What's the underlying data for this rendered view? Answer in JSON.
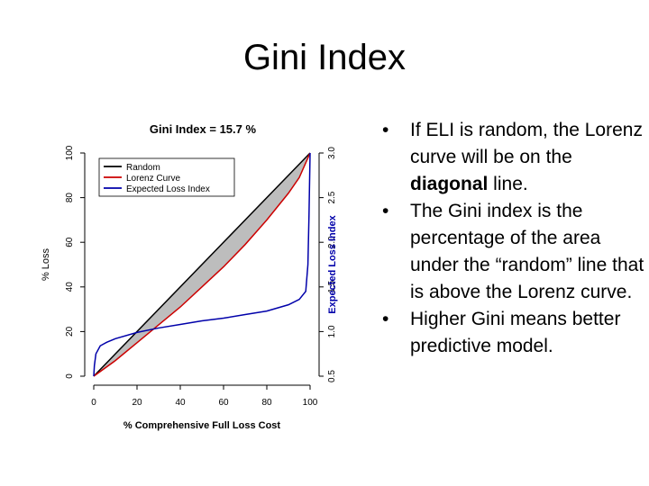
{
  "slide": {
    "title": "Gini Index"
  },
  "bullets": [
    {
      "parts": [
        "If ELI is random, the Lorenz curve will be on the ",
        "diagonal",
        " line."
      ]
    },
    {
      "parts": [
        "The Gini index is the percentage of the area under the “random” line that is above the Lorenz curve.",
        "",
        ""
      ]
    },
    {
      "parts": [
        "Higher Gini means better predictive model.",
        "",
        ""
      ]
    }
  ],
  "chart_data": {
    "type": "line",
    "title": "Gini Index = 15.7 %",
    "xlabel": "% Comprehensive Full Loss Cost",
    "ylabel": "% Loss",
    "y2label": "Expected Loss Index",
    "xlim": [
      0,
      100
    ],
    "ylim": [
      0,
      100
    ],
    "y2lim": [
      0.5,
      3.0
    ],
    "x_ticks": [
      "0",
      "20",
      "40",
      "60",
      "80",
      "100"
    ],
    "y_ticks": [
      "0",
      "20",
      "40",
      "60",
      "80",
      "100"
    ],
    "y2_ticks": [
      "0.5",
      "1.0",
      "1.5",
      "2.0",
      "2.5",
      "3.0"
    ],
    "legend_position": "top-left",
    "shaded_region": "between Random and Lorenz Curve",
    "series": [
      {
        "name": "Random",
        "color": "#000000",
        "x": [
          0,
          100
        ],
        "y": [
          0,
          100
        ]
      },
      {
        "name": "Lorenz Curve",
        "color": "#cc0000",
        "x": [
          0,
          10,
          20,
          30,
          40,
          50,
          60,
          70,
          80,
          90,
          95,
          100
        ],
        "y": [
          0,
          7,
          15,
          23,
          31,
          40,
          49,
          59,
          70,
          82,
          89,
          100
        ]
      },
      {
        "name": "Expected Loss Index",
        "color": "#0000aa",
        "axis": "y2",
        "x": [
          0,
          0.3,
          1,
          3,
          6,
          10,
          20,
          30,
          40,
          50,
          60,
          70,
          80,
          90,
          95,
          98,
          99,
          99.5,
          100
        ],
        "y": [
          0.5,
          0.62,
          0.75,
          0.84,
          0.88,
          0.92,
          0.99,
          1.04,
          1.08,
          1.12,
          1.15,
          1.19,
          1.23,
          1.3,
          1.36,
          1.45,
          1.75,
          2.3,
          3.0
        ]
      }
    ]
  }
}
